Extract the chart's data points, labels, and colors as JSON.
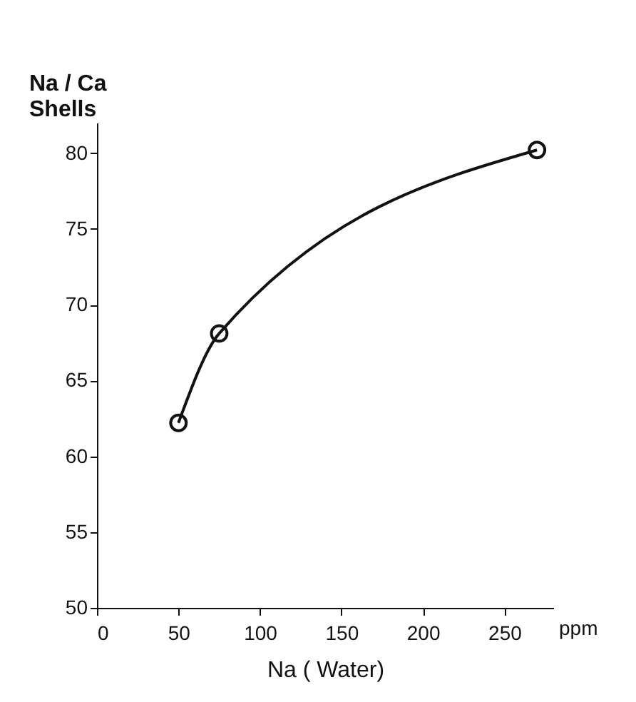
{
  "chart_data": {
    "type": "line",
    "xlabel": "Na ( Water)",
    "ylabel": "Na / Ca\nShells",
    "x": [
      50,
      75,
      270
    ],
    "series": [
      {
        "color": "#111111",
        "values": [
          62.2,
          68.1,
          80.2
        ]
      }
    ],
    "xlim": [
      0,
      280
    ],
    "xticks": [
      0,
      50,
      100,
      150,
      200,
      250
    ],
    "ylim": [
      50,
      82
    ],
    "yticks": [
      50,
      55,
      60,
      65,
      70,
      75,
      80
    ],
    "marker": "circle",
    "line_style": "solid",
    "annotations": [
      "ppm"
    ]
  }
}
